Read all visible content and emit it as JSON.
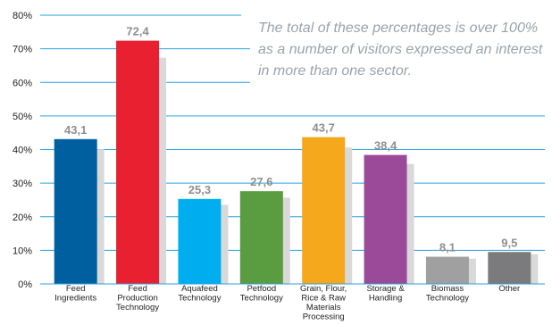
{
  "chart_data": {
    "type": "bar",
    "categories": [
      [
        "Feed",
        "Ingredients"
      ],
      [
        "Feed",
        "Production",
        "Technology"
      ],
      [
        "Aquafeed",
        "Technology"
      ],
      [
        "Petfood",
        "Technology"
      ],
      [
        "Grain, Flour,",
        "Rice & Raw",
        "Materials",
        "Processing"
      ],
      [
        "Storage &",
        "Handling"
      ],
      [
        "Biomass",
        "Technology"
      ],
      [
        "Other"
      ]
    ],
    "values": [
      43.1,
      72.4,
      25.3,
      27.6,
      43.7,
      38.4,
      8.1,
      9.5
    ],
    "value_labels": [
      "43,1",
      "72,4",
      "25,3",
      "27,6",
      "43,7",
      "38,4",
      "8,1",
      "9,5"
    ],
    "colors": [
      "#00609f",
      "#e8202f",
      "#00aeef",
      "#5a9c40",
      "#f5a81c",
      "#9b4a99",
      "#a0a0a0",
      "#7b7b7d"
    ],
    "shadow_color": "#d9d9d9",
    "gridline_color": "#29a3e0",
    "ylim": [
      0,
      80
    ],
    "yticks": [
      "0%",
      "10%",
      "20%",
      "30%",
      "40%",
      "50%",
      "60%",
      "70%",
      "80%"
    ],
    "grid": true,
    "xlabel": "",
    "ylabel": ""
  },
  "annotation": "The total of these percentages is over 100% as a number of visitors expressed an interest in more than one sector."
}
